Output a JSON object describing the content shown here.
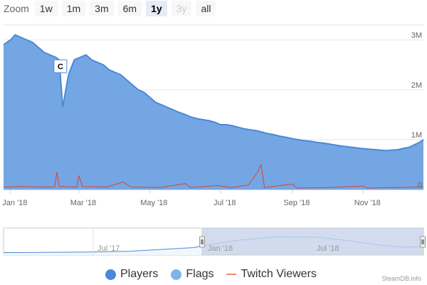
{
  "rangeSelector": {
    "label": "Zoom",
    "buttons": [
      {
        "label": "1w",
        "state": "normal"
      },
      {
        "label": "1m",
        "state": "normal"
      },
      {
        "label": "3m",
        "state": "normal"
      },
      {
        "label": "6m",
        "state": "normal"
      },
      {
        "label": "1y",
        "state": "active"
      },
      {
        "label": "3y",
        "state": "disabled"
      },
      {
        "label": "all",
        "state": "normal"
      }
    ]
  },
  "colors": {
    "players": "#4a88da",
    "players_fill": "#74a6e4",
    "flags": "#7cb5ec",
    "twitch": "#e0412b",
    "grid": "#e6e6e6",
    "navigator_mask": "#c8d3ea"
  },
  "chart_data": {
    "type": "area",
    "xlabel": "",
    "ylabel": "",
    "xlim": [
      "2017-12-26",
      "2018-12-23"
    ],
    "ylim": [
      0,
      3300000
    ],
    "grid": true,
    "y_ticks": [
      {
        "value": 0,
        "label": "0"
      },
      {
        "value": 1000000,
        "label": "1M"
      },
      {
        "value": 2000000,
        "label": "2M"
      },
      {
        "value": 3000000,
        "label": "3M"
      }
    ],
    "x_ticks": [
      {
        "date": "2018-01-01",
        "label": "Jan '18"
      },
      {
        "date": "2018-03-01",
        "label": "Mar '18"
      },
      {
        "date": "2018-05-01",
        "label": "May '18"
      },
      {
        "date": "2018-07-01",
        "label": "Jul '18"
      },
      {
        "date": "2018-09-01",
        "label": "Sep '18"
      },
      {
        "date": "2018-11-01",
        "label": "Nov '18"
      }
    ],
    "legend_placement": "bottom",
    "series": [
      {
        "name": "Players",
        "type": "area",
        "points": [
          [
            "2017-12-26",
            2900000
          ],
          [
            "2018-01-01",
            3000000
          ],
          [
            "2018-01-05",
            3100000
          ],
          [
            "2018-01-10",
            3050000
          ],
          [
            "2018-01-15",
            3000000
          ],
          [
            "2018-01-20",
            2950000
          ],
          [
            "2018-01-25",
            2850000
          ],
          [
            "2018-01-30",
            2750000
          ],
          [
            "2018-02-04",
            2700000
          ],
          [
            "2018-02-09",
            2650000
          ],
          [
            "2018-02-12",
            2600000
          ],
          [
            "2018-02-15",
            1650000
          ],
          [
            "2018-02-20",
            2300000
          ],
          [
            "2018-02-25",
            2600000
          ],
          [
            "2018-03-02",
            2650000
          ],
          [
            "2018-03-07",
            2700000
          ],
          [
            "2018-03-12",
            2600000
          ],
          [
            "2018-03-17",
            2550000
          ],
          [
            "2018-03-22",
            2500000
          ],
          [
            "2018-03-27",
            2400000
          ],
          [
            "2018-04-01",
            2350000
          ],
          [
            "2018-04-06",
            2300000
          ],
          [
            "2018-04-11",
            2200000
          ],
          [
            "2018-04-16",
            2100000
          ],
          [
            "2018-04-21",
            2000000
          ],
          [
            "2018-04-26",
            1950000
          ],
          [
            "2018-05-01",
            1850000
          ],
          [
            "2018-05-06",
            1750000
          ],
          [
            "2018-05-11",
            1700000
          ],
          [
            "2018-05-16",
            1650000
          ],
          [
            "2018-05-21",
            1600000
          ],
          [
            "2018-05-26",
            1550000
          ],
          [
            "2018-06-01",
            1500000
          ],
          [
            "2018-06-06",
            1450000
          ],
          [
            "2018-06-11",
            1420000
          ],
          [
            "2018-06-16",
            1400000
          ],
          [
            "2018-06-21",
            1380000
          ],
          [
            "2018-06-26",
            1350000
          ],
          [
            "2018-07-01",
            1300000
          ],
          [
            "2018-07-06",
            1300000
          ],
          [
            "2018-07-11",
            1280000
          ],
          [
            "2018-07-16",
            1250000
          ],
          [
            "2018-07-21",
            1220000
          ],
          [
            "2018-07-26",
            1200000
          ],
          [
            "2018-08-01",
            1180000
          ],
          [
            "2018-08-06",
            1150000
          ],
          [
            "2018-08-11",
            1120000
          ],
          [
            "2018-08-16",
            1100000
          ],
          [
            "2018-08-21",
            1070000
          ],
          [
            "2018-08-26",
            1050000
          ],
          [
            "2018-09-01",
            1020000
          ],
          [
            "2018-09-06",
            1000000
          ],
          [
            "2018-09-11",
            980000
          ],
          [
            "2018-09-16",
            970000
          ],
          [
            "2018-09-21",
            950000
          ],
          [
            "2018-10-01",
            920000
          ],
          [
            "2018-10-11",
            880000
          ],
          [
            "2018-10-21",
            850000
          ],
          [
            "2018-11-01",
            820000
          ],
          [
            "2018-11-11",
            800000
          ],
          [
            "2018-11-21",
            780000
          ],
          [
            "2018-12-01",
            800000
          ],
          [
            "2018-12-11",
            850000
          ],
          [
            "2018-12-20",
            950000
          ],
          [
            "2018-12-23",
            1000000
          ]
        ]
      },
      {
        "name": "Flags",
        "type": "flags",
        "points": [
          {
            "date": "2018-02-13",
            "title": "C"
          }
        ]
      },
      {
        "name": "Twitch Viewers",
        "type": "line",
        "points": [
          [
            "2017-12-26",
            50000
          ],
          [
            "2018-01-10",
            60000
          ],
          [
            "2018-01-25",
            50000
          ],
          [
            "2018-02-08",
            50000
          ],
          [
            "2018-02-10",
            350000
          ],
          [
            "2018-02-12",
            60000
          ],
          [
            "2018-02-27",
            50000
          ],
          [
            "2018-03-01",
            280000
          ],
          [
            "2018-03-04",
            60000
          ],
          [
            "2018-03-25",
            50000
          ],
          [
            "2018-04-08",
            150000
          ],
          [
            "2018-04-15",
            50000
          ],
          [
            "2018-05-10",
            40000
          ],
          [
            "2018-06-01",
            120000
          ],
          [
            "2018-06-05",
            40000
          ],
          [
            "2018-06-28",
            80000
          ],
          [
            "2018-07-10",
            40000
          ],
          [
            "2018-07-25",
            90000
          ],
          [
            "2018-08-02",
            350000
          ],
          [
            "2018-08-05",
            500000
          ],
          [
            "2018-08-08",
            40000
          ],
          [
            "2018-09-01",
            110000
          ],
          [
            "2018-09-05",
            30000
          ],
          [
            "2018-10-01",
            40000
          ],
          [
            "2018-11-01",
            70000
          ],
          [
            "2018-11-05",
            30000
          ],
          [
            "2018-12-23",
            50000
          ]
        ]
      }
    ],
    "navigator": {
      "x_ticks": [
        {
          "label": "Jul '17"
        },
        {
          "label": "Jan '18"
        },
        {
          "label": "Jul '18"
        }
      ],
      "selected_range": [
        "2017-12-26",
        "2018-12-23"
      ]
    }
  },
  "legend": [
    {
      "label": "Players"
    },
    {
      "label": "Flags"
    },
    {
      "label": "Twitch Viewers"
    }
  ],
  "credit": "SteamDB.info"
}
